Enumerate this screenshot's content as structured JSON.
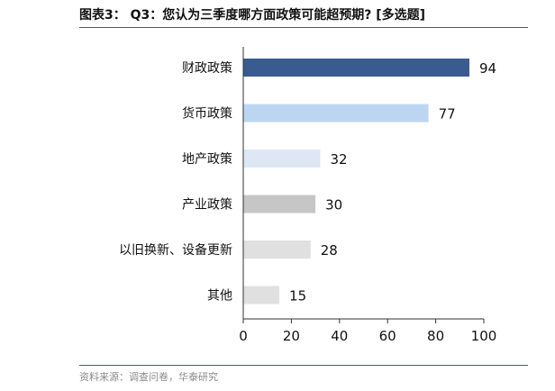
{
  "header": {
    "title": "图表3： Q3：您认为三季度哪方面政策可能超预期? [多选题]"
  },
  "footer": {
    "source": "资料来源：调查问卷，华泰研究"
  },
  "chart_data": {
    "type": "bar",
    "orientation": "horizontal",
    "categories": [
      "财政政策",
      "货币政策",
      "地产政策",
      "产业政策",
      "以旧换新、设备更新",
      "其他"
    ],
    "values": [
      94,
      77,
      32,
      30,
      28,
      15
    ],
    "bar_colors": [
      "#3a5b8f",
      "#bcd6f2",
      "#dde8f4",
      "#c6c6c6",
      "#e0e0e0",
      "#e0e0e0"
    ],
    "xlim": [
      0,
      100
    ],
    "xticks": [
      0,
      20,
      40,
      60,
      80,
      100
    ],
    "title": "",
    "xlabel": "",
    "ylabel": "",
    "grid": false,
    "data_labels": true
  }
}
